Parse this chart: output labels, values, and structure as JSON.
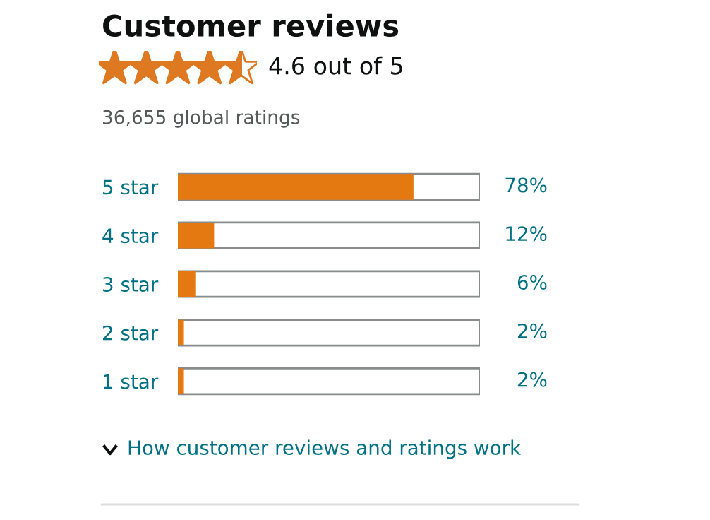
{
  "chart_data": {
    "type": "bar",
    "orientation": "horizontal",
    "title": "Customer reviews",
    "subtitle": "4.6 out of 5",
    "categories": [
      "5 star",
      "4 star",
      "3 star",
      "2 star",
      "1 star"
    ],
    "values": [
      78,
      12,
      6,
      2,
      2
    ],
    "value_labels": [
      "78%",
      "12%",
      "6%",
      "2%",
      "2%"
    ],
    "color": "#e47911",
    "xlim": [
      0,
      100
    ],
    "tick_labels": "y",
    "grid": false,
    "legend": false,
    "annotations": [
      "36,655 global ratings",
      "How customer reviews and ratings work"
    ]
  }
}
